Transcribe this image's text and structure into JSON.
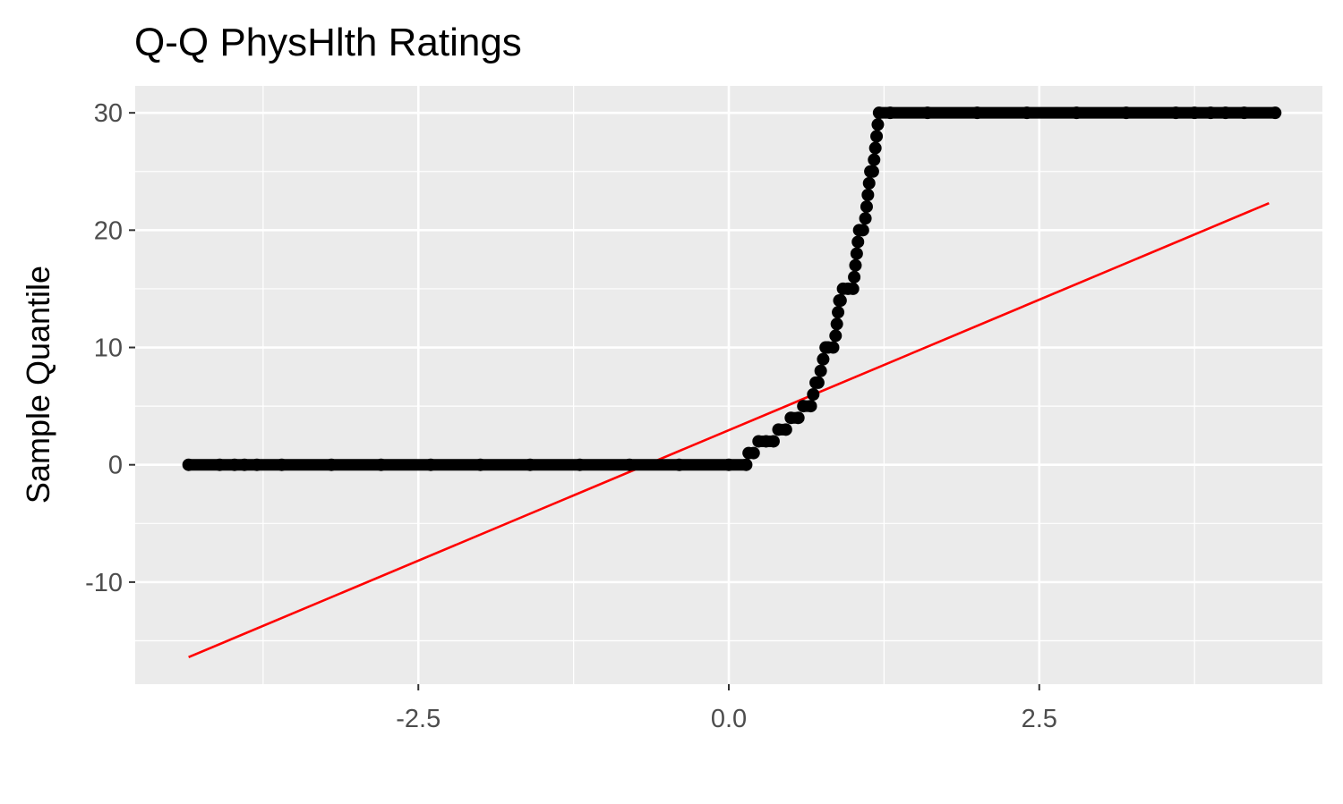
{
  "chart_data": {
    "type": "scatter",
    "title": "Q-Q PhysHlth Ratings",
    "xlabel": "",
    "ylabel": "Sample Quantile",
    "xlim": [
      -4.78,
      4.78
    ],
    "ylim": [
      -18.7,
      32.3
    ],
    "x_ticks": [
      -2.5,
      0.0,
      2.5
    ],
    "x_tick_labels": [
      "-2.5",
      "0.0",
      "2.5"
    ],
    "y_ticks": [
      -10,
      0,
      10,
      20,
      30
    ],
    "y_tick_labels": [
      "-10",
      "0",
      "10",
      "20",
      "30"
    ],
    "grid": true,
    "legend": "none",
    "colors": {
      "panel": "#ebebeb",
      "grid": "#ffffff",
      "points": "#000000",
      "reference_line": "#ff0000"
    },
    "points": [
      [
        -4.35,
        0
      ],
      [
        -4.1,
        0
      ],
      [
        -3.98,
        0
      ],
      [
        -3.9,
        0
      ],
      [
        -3.8,
        0
      ],
      [
        -3.6,
        0
      ],
      [
        -3.2,
        0
      ],
      [
        -2.8,
        0
      ],
      [
        -2.4,
        0
      ],
      [
        -2.0,
        0
      ],
      [
        -1.6,
        0
      ],
      [
        -1.2,
        0
      ],
      [
        -0.8,
        0
      ],
      [
        -0.4,
        0
      ],
      [
        0.0,
        0
      ],
      [
        0.14,
        0
      ],
      [
        0.16,
        1
      ],
      [
        0.2,
        1
      ],
      [
        0.24,
        2
      ],
      [
        0.3,
        2
      ],
      [
        0.36,
        2
      ],
      [
        0.4,
        3
      ],
      [
        0.46,
        3
      ],
      [
        0.5,
        4
      ],
      [
        0.56,
        4
      ],
      [
        0.6,
        5
      ],
      [
        0.66,
        5
      ],
      [
        0.68,
        6
      ],
      [
        0.7,
        7
      ],
      [
        0.72,
        7
      ],
      [
        0.74,
        8
      ],
      [
        0.76,
        9
      ],
      [
        0.78,
        10
      ],
      [
        0.8,
        10
      ],
      [
        0.84,
        10
      ],
      [
        0.86,
        11
      ],
      [
        0.87,
        12
      ],
      [
        0.88,
        13
      ],
      [
        0.89,
        14
      ],
      [
        0.9,
        14
      ],
      [
        0.92,
        15
      ],
      [
        0.96,
        15
      ],
      [
        1.0,
        15
      ],
      [
        1.01,
        16
      ],
      [
        1.02,
        17
      ],
      [
        1.03,
        18
      ],
      [
        1.04,
        19
      ],
      [
        1.05,
        20
      ],
      [
        1.08,
        20
      ],
      [
        1.1,
        21
      ],
      [
        1.11,
        22
      ],
      [
        1.12,
        23
      ],
      [
        1.13,
        24
      ],
      [
        1.14,
        25
      ],
      [
        1.16,
        25
      ],
      [
        1.17,
        26
      ],
      [
        1.18,
        27
      ],
      [
        1.19,
        28
      ],
      [
        1.2,
        29
      ],
      [
        1.21,
        30
      ],
      [
        1.3,
        30
      ],
      [
        1.6,
        30
      ],
      [
        2.0,
        30
      ],
      [
        2.4,
        30
      ],
      [
        2.8,
        30
      ],
      [
        3.2,
        30
      ],
      [
        3.6,
        30
      ],
      [
        3.75,
        30
      ],
      [
        3.88,
        30
      ],
      [
        4.0,
        30
      ],
      [
        4.15,
        30
      ],
      [
        4.4,
        30
      ]
    ],
    "reference_line": {
      "x": [
        -4.35,
        4.35
      ],
      "y": [
        -16.4,
        22.3
      ]
    }
  }
}
